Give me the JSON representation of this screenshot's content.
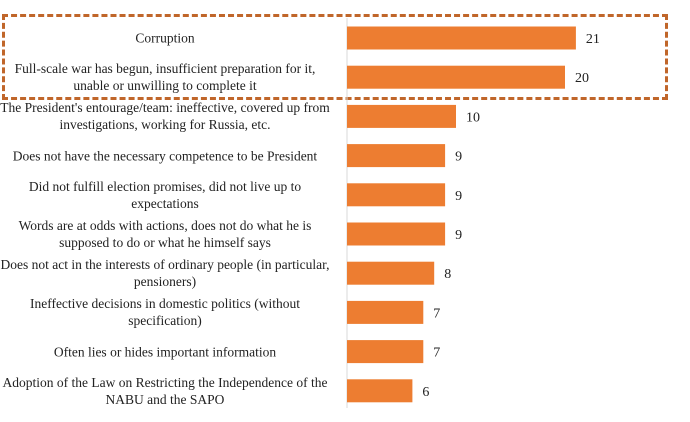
{
  "chart_data": {
    "type": "bar",
    "orientation": "horizontal",
    "categories": [
      "Corruption",
      "Full-scale war has begun, insufficient preparation for it, unable or unwilling to complete it",
      "The President's entourage/team: ineffective, covered up from investigations, working for Russia, etc.",
      "Does not have the necessary competence to be President",
      "Did not fulfill election promises, did not live up to expectations",
      "Words are at odds with actions, does not do what he is supposed to do or what he himself says",
      "Does not act in the interests of ordinary people (in particular, pensioners)",
      "Ineffective decisions in domestic politics (without specification)",
      "Often lies or hides important information",
      "Adoption of the Law on Restricting the Independence of the NABU and the SAPO"
    ],
    "values": [
      21,
      20,
      10,
      9,
      9,
      9,
      8,
      7,
      7,
      6
    ],
    "highlighted_categories": [
      0,
      1
    ],
    "colors": {
      "bar": "#ed7d31",
      "highlight_border": "#c0662a"
    },
    "title": "",
    "xlabel": "",
    "ylabel": ""
  }
}
